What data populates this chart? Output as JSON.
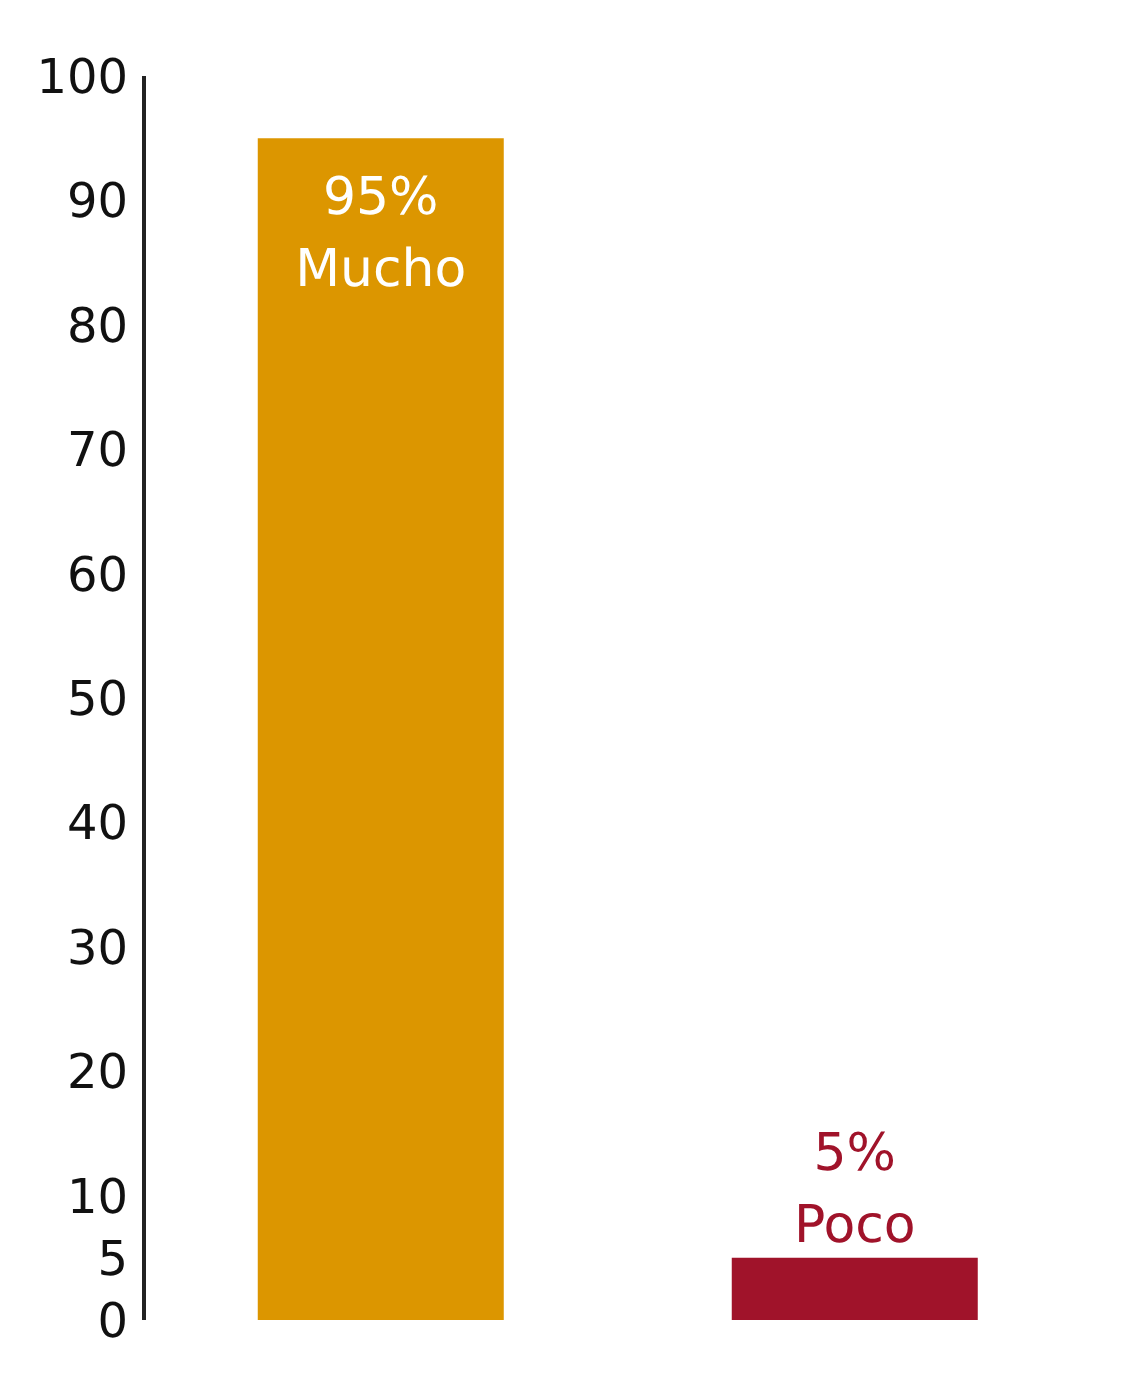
{
  "chart_data": {
    "type": "bar",
    "categories": [
      "Mucho",
      "Poco"
    ],
    "values": [
      95,
      5
    ],
    "colors": [
      "#dc9600",
      "#a0132a"
    ],
    "value_labels": [
      "95%",
      "5%"
    ],
    "ylim": [
      0,
      100
    ],
    "yticks": [
      0,
      5,
      10,
      20,
      30,
      40,
      50,
      60,
      70,
      80,
      90,
      100
    ],
    "grid": false
  }
}
